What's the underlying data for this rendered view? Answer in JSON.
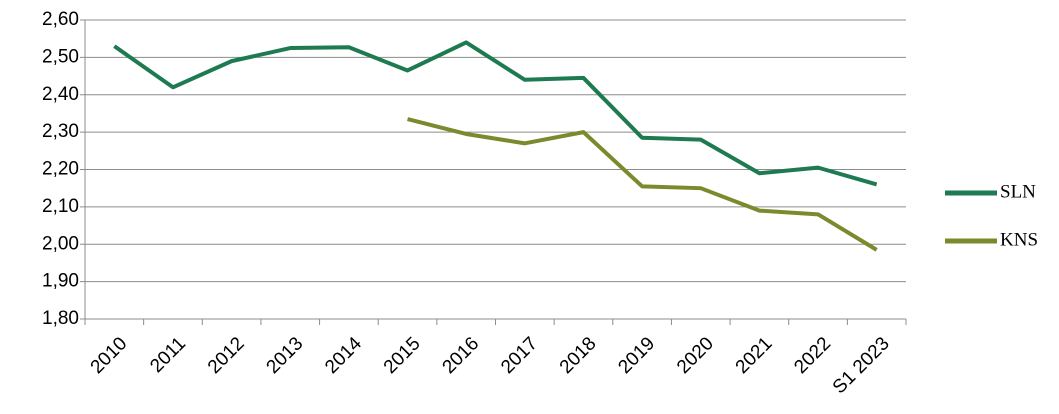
{
  "chart_data": {
    "type": "line",
    "categories": [
      "2010",
      "2011",
      "2012",
      "2013",
      "2014",
      "2015",
      "2016",
      "2017",
      "2018",
      "2019",
      "2020",
      "2021",
      "2022",
      "S1 2023"
    ],
    "series": [
      {
        "name": "SLN",
        "color": "#1e7a50",
        "values": [
          2.53,
          2.42,
          2.49,
          2.525,
          2.527,
          2.465,
          2.54,
          2.44,
          2.445,
          2.285,
          2.28,
          2.19,
          2.205,
          2.16
        ]
      },
      {
        "name": "KNS",
        "color": "#7b8a2c",
        "values": [
          null,
          null,
          null,
          null,
          null,
          2.335,
          2.295,
          2.27,
          2.3,
          2.155,
          2.15,
          2.09,
          2.08,
          1.985
        ]
      }
    ],
    "ylim": [
      1.8,
      2.6
    ],
    "yticks": [
      {
        "value": 1.8,
        "label": "1,80"
      },
      {
        "value": 1.9,
        "label": "1,90"
      },
      {
        "value": 2.0,
        "label": "2,00"
      },
      {
        "value": 2.1,
        "label": "2,10"
      },
      {
        "value": 2.2,
        "label": "2,20"
      },
      {
        "value": 2.3,
        "label": "2,30"
      },
      {
        "value": 2.4,
        "label": "2,40"
      },
      {
        "value": 2.5,
        "label": "2,50"
      },
      {
        "value": 2.6,
        "label": "2,60"
      }
    ],
    "grid": true
  }
}
